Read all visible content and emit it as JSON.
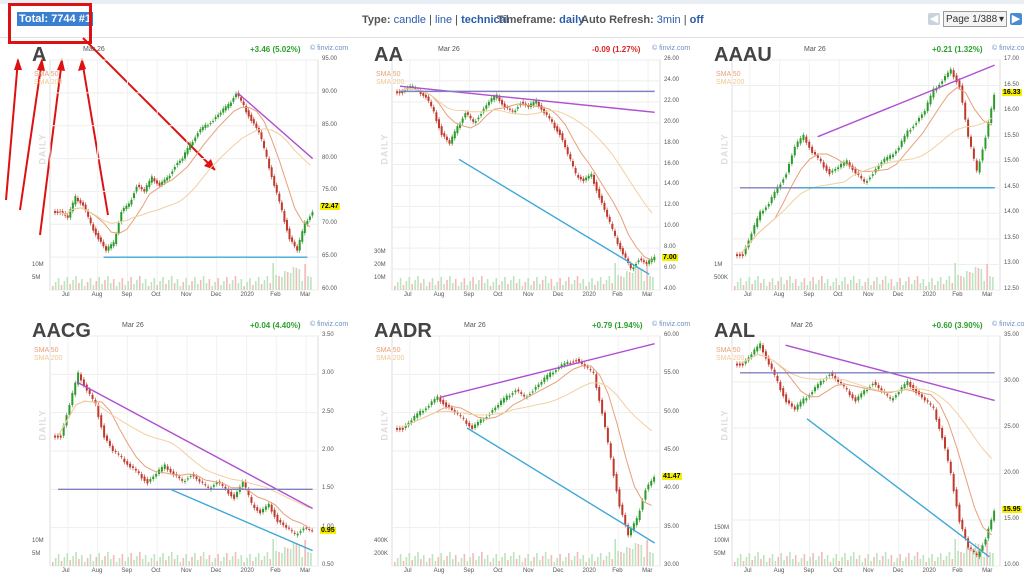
{
  "top": {
    "total_text": "Total: 7744 #1",
    "type_label": "Type:",
    "type_options": [
      "candle",
      "line",
      "technical"
    ],
    "type_active": "technical",
    "timeframe_label": "Timeframe:",
    "timeframe_value": "daily",
    "refresh_label": "Auto Refresh:",
    "refresh_on": "3min",
    "refresh_off": "off",
    "page_value": "Page 1/388"
  },
  "panels": [
    {
      "ticker": "A",
      "date": "Mar 26",
      "change": "+3.46 (5.02%)",
      "change_color": "#2ca02c",
      "source": "© finviz.com",
      "sma50": "SMA 50",
      "sma200": "SMA 200",
      "daily": "DAILY",
      "yticks": [
        "95.00",
        "90.00",
        "85.00",
        "80.00",
        "75.00",
        "70.00",
        "65.00",
        "60.00"
      ],
      "ylim": [
        60,
        95
      ],
      "price": "72.47",
      "price_value": 72.47,
      "vticks": [
        "10M",
        "5M"
      ],
      "xticks": [
        "Jul",
        "Aug",
        "Sep",
        "Oct",
        "Nov",
        "Dec",
        "2020",
        "Feb",
        "Mar"
      ],
      "closes": [
        72,
        71,
        74,
        73,
        70,
        68,
        66,
        67,
        72,
        73,
        76,
        75,
        77,
        76,
        77,
        79,
        80,
        82,
        84,
        85,
        86,
        87,
        88,
        90,
        88,
        86,
        84,
        80,
        76,
        72,
        68,
        66,
        70,
        72
      ],
      "trendlines": [
        {
          "color": "#b04fd0",
          "from": [
            0.7,
            90
          ],
          "to": [
            0.98,
            80
          ]
        },
        {
          "color": "#3ea8d8",
          "from": [
            0.2,
            65
          ],
          "to": [
            0.96,
            65
          ]
        }
      ]
    },
    {
      "ticker": "AA",
      "date": "Mar 26",
      "change": "-0.09 (1.27%)",
      "change_color": "#d62728",
      "source": "© finviz.com",
      "sma50": "SMA 50",
      "sma200": "SMA 200",
      "daily": "DAILY",
      "yticks": [
        "26.00",
        "24.00",
        "22.00",
        "20.00",
        "18.00",
        "16.00",
        "14.00",
        "12.00",
        "10.00",
        "8.00",
        "6.00",
        "4.00"
      ],
      "ylim": [
        4,
        26
      ],
      "price": "7.00",
      "price_value": 7.0,
      "vticks": [
        "30M",
        "20M",
        "10M"
      ],
      "xticks": [
        "Jul",
        "Aug",
        "Sep",
        "Oct",
        "Nov",
        "Dec",
        "2020",
        "Feb",
        "Mar"
      ],
      "closes": [
        23,
        23.5,
        23,
        22.5,
        21,
        19,
        18,
        19.5,
        21,
        20,
        21,
        22,
        22.5,
        21.5,
        21,
        22,
        21.5,
        22,
        21,
        20,
        19,
        17,
        15,
        14.5,
        15,
        13,
        11,
        9,
        7.5,
        6,
        7,
        6.5,
        7
      ],
      "trendlines": [
        {
          "color": "#b04fd0",
          "from": [
            0.03,
            23.5
          ],
          "to": [
            0.98,
            21
          ]
        },
        {
          "color": "#8080c0",
          "from": [
            0.03,
            23
          ],
          "to": [
            0.98,
            23
          ]
        },
        {
          "color": "#3ea8d8",
          "from": [
            0.25,
            16.5
          ],
          "to": [
            0.96,
            5.5
          ]
        }
      ]
    },
    {
      "ticker": "AAAU",
      "date": "Mar 26",
      "change": "+0.21 (1.32%)",
      "change_color": "#2ca02c",
      "source": "© finviz.com",
      "sma50": "SMA 50",
      "sma200": "SMA 200",
      "daily": "DAILY",
      "yticks": [
        "17.00",
        "16.50",
        "16.00",
        "15.50",
        "15.00",
        "14.50",
        "14.00",
        "13.50",
        "13.00",
        "12.50"
      ],
      "ylim": [
        12.5,
        17
      ],
      "price": "16.33",
      "price_value": 16.33,
      "vticks": [
        "1M",
        "500K"
      ],
      "xticks": [
        "Jul",
        "Aug",
        "Sep",
        "Oct",
        "Nov",
        "Dec",
        "2020",
        "Feb",
        "Mar"
      ],
      "closes": [
        13.2,
        13.6,
        14,
        14.2,
        14.5,
        14.8,
        15.3,
        15.5,
        15.2,
        15,
        14.8,
        14.9,
        15,
        14.8,
        14.6,
        14.8,
        15,
        15.1,
        15.3,
        15.6,
        15.8,
        16,
        16.4,
        16.6,
        16.8,
        16.5,
        15.5,
        14.8,
        15.5,
        16.3
      ],
      "trendlines": [
        {
          "color": "#b04fd0",
          "from": [
            0.32,
            15.5
          ],
          "to": [
            0.98,
            16.9
          ]
        },
        {
          "color": "#8080c0",
          "from": [
            0.03,
            14.5
          ],
          "to": [
            0.98,
            14.5
          ]
        },
        {
          "color": "#3ea8d8",
          "from": [
            0.25,
            14.5
          ],
          "to": [
            0.98,
            14.5
          ]
        }
      ]
    },
    {
      "ticker": "AACG",
      "date": "Mar 26",
      "change": "+0.04 (4.40%)",
      "change_color": "#2ca02c",
      "source": "© finviz.com",
      "sma50": "SMA 50",
      "sma200": "SMA 200",
      "daily": "DAILY",
      "yticks": [
        "3.50",
        "3.00",
        "2.50",
        "2.00",
        "1.50",
        "1.00",
        "0.50"
      ],
      "ylim": [
        0.5,
        3.5
      ],
      "price": "0.95",
      "price_value": 0.95,
      "vticks": [
        "10M",
        "5M"
      ],
      "xticks": [
        "Jul",
        "Aug",
        "Sep",
        "Oct",
        "Nov",
        "Dec",
        "2020",
        "Feb",
        "Mar"
      ],
      "closes": [
        2.2,
        2.6,
        3.0,
        2.8,
        2.6,
        2.2,
        2.0,
        1.9,
        1.8,
        1.7,
        1.6,
        1.7,
        1.8,
        1.7,
        1.6,
        1.7,
        1.6,
        1.5,
        1.6,
        1.5,
        1.4,
        1.6,
        1.3,
        1.2,
        1.3,
        1.1,
        1.0,
        0.9,
        1.0,
        0.95
      ],
      "trendlines": [
        {
          "color": "#b04fd0",
          "from": [
            0.1,
            2.9
          ],
          "to": [
            0.98,
            1.25
          ]
        },
        {
          "color": "#8080c0",
          "from": [
            0.03,
            1.5
          ],
          "to": [
            0.98,
            1.5
          ]
        },
        {
          "color": "#3ea8d8",
          "from": [
            0.45,
            1.5
          ],
          "to": [
            0.98,
            0.7
          ]
        }
      ]
    },
    {
      "ticker": "AADR",
      "date": "Mar 26",
      "change": "+0.79 (1.94%)",
      "change_color": "#2ca02c",
      "source": "© finviz.com",
      "sma50": "SMA 50",
      "sma200": "SMA 200",
      "daily": "DAILY",
      "yticks": [
        "60.00",
        "55.00",
        "50.00",
        "45.00",
        "40.00",
        "35.00",
        "30.00"
      ],
      "ylim": [
        30,
        60
      ],
      "price": "41.47",
      "price_value": 41.47,
      "vticks": [
        "400K",
        "200K"
      ],
      "xticks": [
        "Jul",
        "Aug",
        "Sep",
        "Oct",
        "Nov",
        "Dec",
        "2020",
        "Feb",
        "Mar"
      ],
      "closes": [
        48,
        49,
        50,
        51,
        52,
        51,
        50,
        49,
        48,
        49,
        50,
        51,
        52,
        53,
        52,
        53,
        54,
        55,
        56,
        56.5,
        57,
        56,
        55,
        50,
        44,
        38,
        34,
        36,
        40,
        41.5
      ],
      "trendlines": [
        {
          "color": "#b04fd0",
          "from": [
            0.18,
            52
          ],
          "to": [
            0.98,
            59
          ]
        },
        {
          "color": "#3ea8d8",
          "from": [
            0.28,
            48
          ],
          "to": [
            0.98,
            33
          ]
        }
      ]
    },
    {
      "ticker": "AAL",
      "date": "Mar 26",
      "change": "+0.60 (3.90%)",
      "change_color": "#2ca02c",
      "source": "© finviz.com",
      "sma50": "SMA 50",
      "sma200": "SMA 200",
      "daily": "DAILY",
      "yticks": [
        "35.00",
        "30.00",
        "25.00",
        "20.00",
        "15.00",
        "10.00"
      ],
      "ylim": [
        10,
        35
      ],
      "price": "15.95",
      "price_value": 15.95,
      "vticks": [
        "150M",
        "100M",
        "50M"
      ],
      "xticks": [
        "Jul",
        "Aug",
        "Sep",
        "Oct",
        "Nov",
        "Dec",
        "2020",
        "Feb",
        "Mar"
      ],
      "closes": [
        32,
        33,
        34,
        32,
        30,
        28,
        27,
        28,
        29,
        30,
        31,
        30,
        29,
        28,
        29,
        30,
        29,
        28,
        29,
        30,
        29,
        28,
        27,
        24,
        20,
        15,
        12,
        11,
        13,
        15.9
      ],
      "trendlines": [
        {
          "color": "#b04fd0",
          "from": [
            0.2,
            34
          ],
          "to": [
            0.98,
            28
          ]
        },
        {
          "color": "#8080c0",
          "from": [
            0.03,
            31
          ],
          "to": [
            0.98,
            31
          ]
        },
        {
          "color": "#3ea8d8",
          "from": [
            0.28,
            26
          ],
          "to": [
            0.96,
            11
          ]
        }
      ]
    }
  ]
}
